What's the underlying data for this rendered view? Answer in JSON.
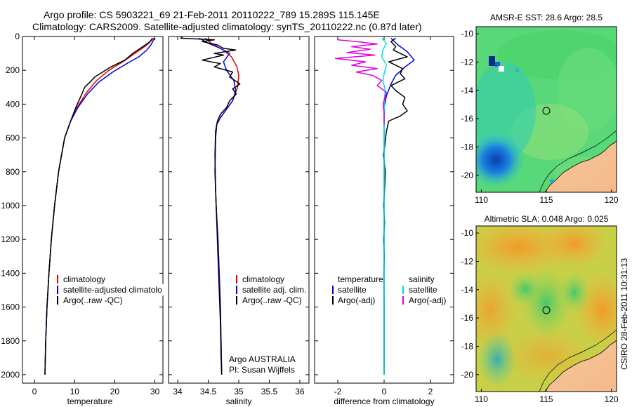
{
  "title_line1": "Argo profile: CS 5903221_69 21-Feb-2011 20110222_789 15.289S 115.145E",
  "title_line2": "Climatology: CARS2009. Satellite-adjusted climatology: synTS_20110222.nc (0.87d later)",
  "colors": {
    "clim": "#e00000",
    "sat": "#0000e0",
    "argo": "#000000",
    "sal_sat": "#00e0e0",
    "sal_argo": "#e000e0"
  },
  "chart_data": [
    {
      "type": "line",
      "xlabel": "temperature",
      "xlim": [
        -3,
        32
      ],
      "ylim": [
        2050,
        0
      ],
      "xticks": [
        0,
        10,
        20,
        30
      ],
      "yticks": [
        0,
        200,
        400,
        600,
        800,
        1000,
        1200,
        1400,
        1600,
        1800,
        2000
      ],
      "legend": [
        "climatology",
        "satellite-adjusted climatology",
        "Argo(..raw -QC)"
      ],
      "series": [
        {
          "name": "climatology",
          "color": "#e00000",
          "points": [
            [
              29.6,
              10
            ],
            [
              28.5,
              40
            ],
            [
              27.4,
              60
            ],
            [
              25,
              100
            ],
            [
              22,
              150
            ],
            [
              18.5,
              200
            ],
            [
              15.5,
              260
            ],
            [
              13,
              330
            ],
            [
              10.6,
              420
            ],
            [
              9,
              500
            ],
            [
              7.5,
              600
            ],
            [
              6,
              800
            ],
            [
              5,
              1000
            ],
            [
              4.2,
              1200
            ],
            [
              3.6,
              1400
            ],
            [
              3.1,
              1600
            ],
            [
              2.8,
              1800
            ],
            [
              2.6,
              2000
            ]
          ]
        },
        {
          "name": "satellite-adjusted climatology",
          "color": "#0000e0",
          "points": [
            [
              29.9,
              10
            ],
            [
              29,
              50
            ],
            [
              28,
              80
            ],
            [
              26,
              120
            ],
            [
              23,
              160
            ],
            [
              19.5,
              210
            ],
            [
              16,
              270
            ],
            [
              13.2,
              340
            ],
            [
              10.8,
              420
            ],
            [
              9,
              500
            ],
            [
              7.5,
              600
            ],
            [
              6,
              800
            ],
            [
              5,
              1000
            ],
            [
              4.2,
              1200
            ],
            [
              3.6,
              1400
            ],
            [
              3.1,
              1600
            ],
            [
              2.8,
              1800
            ],
            [
              2.6,
              2000
            ]
          ]
        },
        {
          "name": "Argo(..raw -QC)",
          "color": "#000000",
          "points": [
            [
              29.4,
              10
            ],
            [
              28.8,
              30
            ],
            [
              27,
              60
            ],
            [
              24.5,
              100
            ],
            [
              22.5,
              140
            ],
            [
              19,
              180
            ],
            [
              17,
              210
            ],
            [
              15,
              240
            ],
            [
              13.8,
              270
            ],
            [
              12.5,
              300
            ],
            [
              11.8,
              340
            ],
            [
              10.3,
              420
            ],
            [
              9,
              500
            ],
            [
              7.5,
              600
            ],
            [
              6,
              800
            ],
            [
              5,
              1000
            ],
            [
              4.2,
              1200
            ],
            [
              3.6,
              1400
            ],
            [
              3.1,
              1600
            ],
            [
              2.8,
              1800
            ],
            [
              2.6,
              2000
            ]
          ]
        }
      ]
    },
    {
      "type": "line",
      "xlabel": "salinity",
      "xlim": [
        33.85,
        36.15
      ],
      "ylim": [
        2050,
        0
      ],
      "xticks": [
        34,
        34.5,
        35,
        35.5,
        36
      ],
      "legend": [
        "climatology",
        "satellite adj. clim.",
        "Argo(..raw -QC)"
      ],
      "annotation": [
        "Argo AUSTRALIA",
        "PI: Susan Wijffels"
      ],
      "series": [
        {
          "name": "climatology",
          "color": "#e00000",
          "points": [
            [
              34.45,
              10
            ],
            [
              34.55,
              40
            ],
            [
              34.75,
              80
            ],
            [
              34.88,
              120
            ],
            [
              34.97,
              180
            ],
            [
              35.0,
              230
            ],
            [
              34.98,
              300
            ],
            [
              34.9,
              380
            ],
            [
              34.8,
              430
            ],
            [
              34.7,
              480
            ],
            [
              34.64,
              520
            ],
            [
              34.62,
              600
            ],
            [
              34.61,
              800
            ],
            [
              34.63,
              1000
            ],
            [
              34.66,
              1200
            ],
            [
              34.68,
              1400
            ],
            [
              34.7,
              1600
            ],
            [
              34.71,
              1800
            ],
            [
              34.72,
              2000
            ]
          ]
        },
        {
          "name": "satellite adj. clim.",
          "color": "#0000e0",
          "points": [
            [
              34.35,
              10
            ],
            [
              34.5,
              40
            ],
            [
              34.7,
              70
            ],
            [
              34.85,
              100
            ],
            [
              34.75,
              150
            ],
            [
              34.8,
              200
            ],
            [
              34.92,
              260
            ],
            [
              34.95,
              320
            ],
            [
              34.9,
              380
            ],
            [
              34.8,
              430
            ],
            [
              34.7,
              480
            ],
            [
              34.64,
              520
            ],
            [
              34.62,
              600
            ],
            [
              34.61,
              800
            ],
            [
              34.63,
              1000
            ],
            [
              34.66,
              1200
            ],
            [
              34.68,
              1400
            ],
            [
              34.7,
              1600
            ],
            [
              34.71,
              1800
            ],
            [
              34.72,
              2000
            ]
          ]
        },
        {
          "name": "Argo(..raw -QC)",
          "color": "#000000",
          "points": [
            [
              34.08,
              0
            ],
            [
              34.05,
              10
            ],
            [
              34.6,
              20
            ],
            [
              34.4,
              30
            ],
            [
              34.65,
              50
            ],
            [
              34.75,
              70
            ],
            [
              34.95,
              80
            ],
            [
              34.6,
              100
            ],
            [
              34.75,
              110
            ],
            [
              34.4,
              140
            ],
            [
              34.7,
              160
            ],
            [
              34.6,
              180
            ],
            [
              34.9,
              210
            ],
            [
              34.85,
              240
            ],
            [
              35.02,
              280
            ],
            [
              34.9,
              310
            ],
            [
              34.96,
              340
            ],
            [
              34.85,
              380
            ],
            [
              34.8,
              420
            ],
            [
              34.7,
              460
            ],
            [
              34.65,
              500
            ],
            [
              34.62,
              560
            ],
            [
              34.61,
              700
            ],
            [
              34.62,
              900
            ],
            [
              34.64,
              1100
            ],
            [
              34.66,
              1300
            ],
            [
              34.68,
              1500
            ],
            [
              34.7,
              1700
            ],
            [
              34.71,
              1900
            ],
            [
              34.72,
              2000
            ]
          ]
        }
      ]
    },
    {
      "type": "line",
      "xlabel": "difference from climatology",
      "xlim": [
        -3,
        3
      ],
      "ylim": [
        2050,
        0
      ],
      "xticks": [
        -2,
        0,
        2
      ],
      "legend_temperature": [
        "temperature",
        "satellite",
        "Argo(-adj)"
      ],
      "legend_salinity": [
        "salinity",
        "satellite",
        "Argo(-adj)"
      ],
      "series": [
        {
          "name": "temperature satellite",
          "color": "#0000e0",
          "points": [
            [
              0.3,
              10
            ],
            [
              0.6,
              50
            ],
            [
              1.0,
              90
            ],
            [
              1.3,
              140
            ],
            [
              0.9,
              180
            ],
            [
              0.5,
              230
            ],
            [
              0.3,
              280
            ],
            [
              0.1,
              350
            ],
            [
              0.0,
              420
            ],
            [
              0,
              500
            ],
            [
              0,
              800
            ],
            [
              0,
              1200
            ],
            [
              0,
              1600
            ],
            [
              0,
              2000
            ]
          ]
        },
        {
          "name": "temperature Argo(-adj)",
          "color": "#000000",
          "points": [
            [
              0.5,
              10
            ],
            [
              0.3,
              30
            ],
            [
              0.5,
              60
            ],
            [
              0.4,
              80
            ],
            [
              1.0,
              120
            ],
            [
              0.2,
              150
            ],
            [
              0.8,
              190
            ],
            [
              0.7,
              220
            ],
            [
              0.9,
              250
            ],
            [
              0.3,
              290
            ],
            [
              0.5,
              320
            ],
            [
              0.9,
              360
            ],
            [
              0.8,
              400
            ],
            [
              1.0,
              440
            ],
            [
              0.7,
              470
            ],
            [
              0.2,
              500
            ],
            [
              0.1,
              560
            ],
            [
              0.02,
              650
            ],
            [
              -0.03,
              700
            ],
            [
              0.05,
              800
            ],
            [
              0.02,
              900
            ],
            [
              -0.02,
              1000
            ],
            [
              0.02,
              1100
            ],
            [
              -0.02,
              1200
            ],
            [
              0.01,
              1300
            ],
            [
              -0.01,
              1400
            ],
            [
              0,
              1600
            ],
            [
              0,
              2000
            ]
          ]
        },
        {
          "name": "salinity satellite",
          "color": "#00e0e0",
          "points": [
            [
              -0.1,
              10
            ],
            [
              0.1,
              40
            ],
            [
              -0.05,
              80
            ],
            [
              -0.1,
              120
            ],
            [
              0.1,
              170
            ],
            [
              0.0,
              220
            ],
            [
              -0.05,
              260
            ],
            [
              0.05,
              320
            ],
            [
              0.0,
              380
            ],
            [
              0.02,
              450
            ],
            [
              0,
              520
            ],
            [
              0,
              800
            ],
            [
              0,
              1200
            ],
            [
              0,
              1600
            ],
            [
              0,
              2000
            ]
          ]
        },
        {
          "name": "salinity Argo(-adj)",
          "color": "#e000e0",
          "points": [
            [
              -2.0,
              20
            ],
            [
              -1.2,
              30
            ],
            [
              -0.3,
              45
            ],
            [
              -1.4,
              60
            ],
            [
              -0.6,
              75
            ],
            [
              -1.6,
              95
            ],
            [
              -0.4,
              110
            ],
            [
              -2.1,
              130
            ],
            [
              -0.8,
              150
            ],
            [
              -1.4,
              170
            ],
            [
              -0.3,
              190
            ],
            [
              -1.2,
              210
            ],
            [
              -0.5,
              230
            ],
            [
              -0.1,
              260
            ],
            [
              -0.3,
              290
            ],
            [
              0.1,
              330
            ],
            [
              -0.05,
              400
            ],
            [
              0,
              450
            ],
            [
              0,
              520
            ]
          ]
        }
      ]
    }
  ],
  "maps": [
    {
      "title": "AMSR-E SST: 28.6 Argo: 28.5",
      "xticks": [
        "110",
        "115",
        "120"
      ],
      "yticks": [
        "-10",
        "-12",
        "-14",
        "-16",
        "-18",
        "-20"
      ],
      "marker": {
        "lon": 115.145,
        "lat": -15.289
      }
    },
    {
      "title": "Altimetric SLA: 0.048 Argo: 0.025",
      "xticks": [
        "110",
        "115",
        "120"
      ],
      "yticks": [
        "-10",
        "-12",
        "-14",
        "-16",
        "-18",
        "-20"
      ],
      "marker": {
        "lon": 115.145,
        "lat": -15.289
      }
    }
  ],
  "footer_stamp": "CSIRO 28-Feb-2011 10:31:13"
}
